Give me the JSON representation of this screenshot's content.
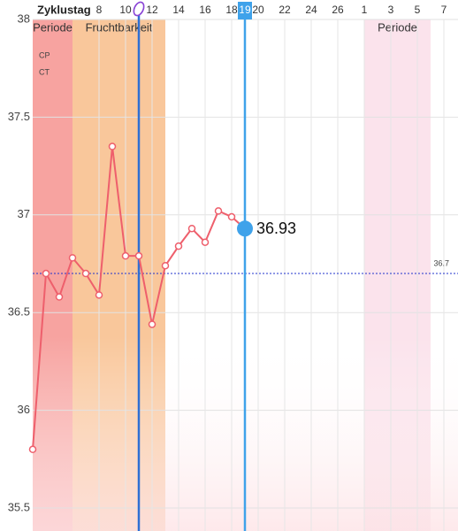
{
  "chart_data": {
    "type": "line",
    "x_title": "Zyklustag",
    "x": [
      3,
      4,
      5,
      6,
      7,
      8,
      9,
      10,
      11,
      12,
      13,
      14,
      15,
      16,
      17,
      18,
      19
    ],
    "values": [
      35.8,
      36.7,
      36.58,
      36.78,
      36.7,
      36.59,
      37.35,
      36.79,
      36.79,
      36.44,
      36.74,
      36.84,
      36.93,
      36.86,
      37.02,
      36.99,
      36.93
    ],
    "color": "#ee5f6c",
    "xlim": [
      3,
      35
    ],
    "xticks": [
      8,
      10,
      12,
      14,
      16,
      18,
      19,
      20,
      22,
      24,
      26,
      {
        "value": 28,
        "label": "1"
      },
      {
        "value": 30,
        "label": "3"
      },
      {
        "value": 32,
        "label": "5"
      },
      {
        "value": 34,
        "label": "7"
      }
    ],
    "ylim": [
      35.5,
      38
    ],
    "yticks": [
      35.5,
      36,
      36.5,
      37,
      37.5,
      38
    ],
    "grid": true,
    "bands": [
      {
        "label": "Periode",
        "from": 3,
        "to": 6,
        "color": "#f7a3a0"
      },
      {
        "label": "Fruchtbarkeit",
        "from": 6,
        "to": 13,
        "color": "#f9c79b"
      },
      {
        "label": "Periode",
        "from": 28,
        "to": 33,
        "color": "#fbe3ec"
      }
    ],
    "band_notes": [
      "CP",
      "CT"
    ],
    "coverline": {
      "value": 36.7,
      "color": "#2233cc"
    },
    "markers": [
      {
        "x": 11,
        "color": "#2e6fd3",
        "selected": false
      },
      {
        "x": 19,
        "color": "#3fa2ea",
        "selected": true
      }
    ]
  }
}
